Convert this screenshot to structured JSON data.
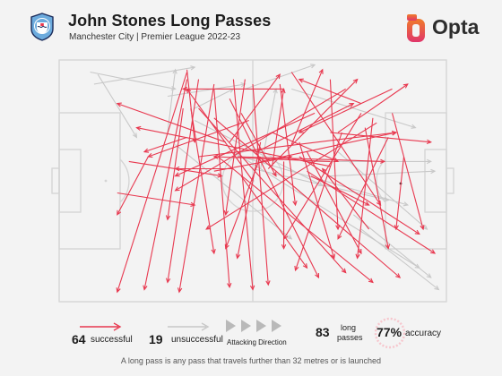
{
  "header": {
    "title": "John Stones Long Passes",
    "subtitle": "Manchester City | Premier League 2022-23",
    "brand": "Opta"
  },
  "legend": {
    "successful_count": "64",
    "successful_label": "successful",
    "unsuccessful_count": "19",
    "unsuccessful_label": "unsuccessful",
    "direction_label": "Attacking Direction",
    "long_passes_count": "83",
    "long_passes_label_line1": "long",
    "long_passes_label_line2": "passes",
    "accuracy_value": "77%",
    "accuracy_label": "accuracy",
    "footnote": "A long pass is any pass that travels further than 32 metres or is launched"
  },
  "colors": {
    "successful": "#e8384f",
    "unsuccessful": "#c8c8c8",
    "pitch_lines": "#d4d4d4",
    "brand_orange": "#f07c2a",
    "brand_pink": "#e0356b",
    "crest_blue": "#6cabdd"
  },
  "chart_data": {
    "type": "pass-map",
    "pitch": {
      "length": 100,
      "width": 100,
      "attacking_direction": "left-to-right"
    },
    "summary": {
      "long_passes": 83,
      "successful": 64,
      "unsuccessful": 19,
      "accuracy_pct": 77
    },
    "passes": {
      "successful": [
        [
          33,
          95,
          15,
          4
        ],
        [
          33,
          92,
          22,
          5
        ],
        [
          36,
          92,
          28,
          8
        ],
        [
          40,
          90,
          31,
          4
        ],
        [
          40,
          88,
          44,
          6
        ],
        [
          45,
          92,
          50,
          5
        ],
        [
          50,
          90,
          54,
          7
        ],
        [
          44,
          84,
          67,
          10
        ],
        [
          36,
          80,
          74,
          12
        ],
        [
          40,
          76,
          88,
          10
        ],
        [
          41,
          60,
          81,
          8
        ],
        [
          47,
          52,
          64,
          14
        ],
        [
          52,
          66,
          46,
          18
        ],
        [
          52,
          60,
          43,
          22
        ],
        [
          58,
          58,
          58,
          22
        ],
        [
          62,
          66,
          71,
          18
        ],
        [
          64,
          62,
          78,
          20
        ],
        [
          70,
          92,
          72,
          30
        ],
        [
          73,
          70,
          61,
          13
        ],
        [
          78,
          78,
          58,
          26
        ],
        [
          79,
          72,
          85,
          22
        ],
        [
          81,
          76,
          77,
          18
        ],
        [
          85,
          68,
          72,
          26
        ],
        [
          62,
          60,
          93,
          28
        ],
        [
          89,
          60,
          87,
          30
        ],
        [
          60,
          95,
          83,
          40
        ],
        [
          48,
          92,
          43,
          36
        ],
        [
          74,
          88,
          30,
          46
        ],
        [
          57,
          90,
          61,
          40
        ],
        [
          32,
          80,
          28,
          34
        ],
        [
          80,
          30,
          68,
          55
        ],
        [
          45,
          55,
          30,
          55
        ],
        [
          15,
          45,
          35,
          40
        ],
        [
          18,
          58,
          42,
          52
        ],
        [
          23,
          60,
          15,
          36
        ],
        [
          66,
          78,
          30,
          52
        ],
        [
          33,
          68,
          22,
          62
        ],
        [
          70,
          58,
          40,
          60
        ],
        [
          52,
          58,
          87,
          70
        ],
        [
          70,
          70,
          96,
          66
        ],
        [
          78,
          82,
          62,
          92
        ],
        [
          55,
          56,
          58,
          88
        ],
        [
          54,
          55,
          77,
          92
        ],
        [
          44,
          66,
          57,
          94
        ],
        [
          60,
          65,
          68,
          96
        ],
        [
          72,
          70,
          90,
          90
        ],
        [
          50,
          50,
          33,
          88
        ],
        [
          43,
          66,
          15,
          82
        ],
        [
          70,
          56,
          20,
          72
        ],
        [
          46,
          60,
          84,
          58
        ],
        [
          65,
          52,
          80,
          40
        ],
        [
          33,
          96,
          35,
          66
        ],
        [
          49,
          75,
          23,
          60
        ],
        [
          86,
          88,
          62,
          70
        ],
        [
          40,
          54,
          60,
          60
        ],
        [
          64,
          54,
          97,
          20
        ],
        [
          36,
          60,
          87,
          70
        ],
        [
          51,
          62,
          76,
          82
        ],
        [
          34,
          80,
          40,
          20
        ],
        [
          82,
          74,
          38,
          30
        ],
        [
          55,
          70,
          72,
          58
        ],
        [
          86,
          78,
          94,
          30
        ],
        [
          58,
          88,
          32,
          88
        ],
        [
          47,
          78,
          56,
          52
        ]
      ],
      "unsuccessful": [
        [
          8,
          95,
          30,
          88
        ],
        [
          9,
          90,
          35,
          97
        ],
        [
          10,
          94,
          20,
          68
        ],
        [
          28,
          85,
          48,
          90
        ],
        [
          28,
          70,
          30,
          96
        ],
        [
          35,
          80,
          45,
          88
        ],
        [
          35,
          75,
          68,
          48
        ],
        [
          50,
          55,
          85,
          42
        ],
        [
          47,
          60,
          90,
          40
        ],
        [
          48,
          88,
          66,
          98
        ],
        [
          52,
          55,
          56,
          88
        ],
        [
          60,
          88,
          92,
          72
        ],
        [
          63,
          58,
          96,
          58
        ],
        [
          70,
          52,
          97,
          54
        ],
        [
          45,
          62,
          93,
          14
        ],
        [
          72,
          62,
          95,
          30
        ],
        [
          30,
          65,
          60,
          26
        ],
        [
          78,
          30,
          98,
          5
        ],
        [
          76,
          36,
          96,
          10
        ]
      ]
    }
  }
}
